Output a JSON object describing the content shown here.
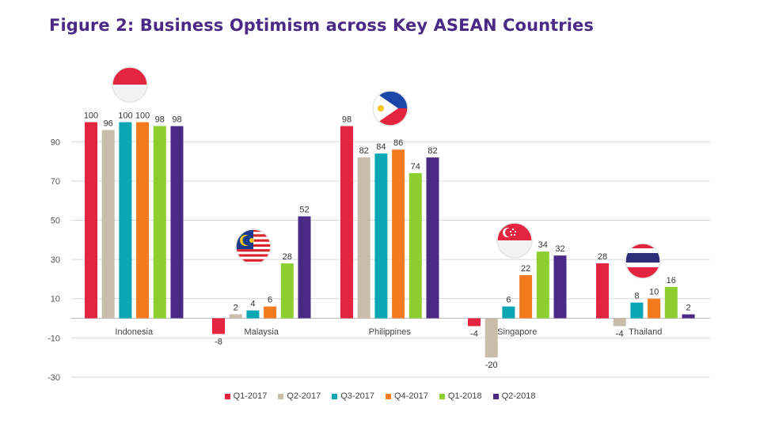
{
  "title": "Figure 2: Business Optimism across Key ASEAN Countries",
  "chart_data": {
    "type": "bar",
    "title": "Figure 2: Business Optimism across Key ASEAN Countries",
    "categories": [
      "Indonesia",
      "Malaysia",
      "Philippines",
      "Singapore",
      "Thailand"
    ],
    "series": [
      {
        "name": "Q1-2017",
        "color": "#e3253f",
        "values": [
          100,
          -8,
          98,
          -4,
          28
        ]
      },
      {
        "name": "Q2-2017",
        "color": "#c8bcab",
        "values": [
          96,
          2,
          82,
          -20,
          -4
        ]
      },
      {
        "name": "Q3-2017",
        "color": "#0aa6b4",
        "values": [
          100,
          4,
          84,
          6,
          8
        ]
      },
      {
        "name": "Q4-2017",
        "color": "#f47a20",
        "values": [
          100,
          6,
          86,
          22,
          10
        ]
      },
      {
        "name": "Q1-2018",
        "color": "#8ccf2f",
        "values": [
          98,
          28,
          74,
          34,
          16
        ]
      },
      {
        "name": "Q2-2018",
        "color": "#4b2a86",
        "values": [
          98,
          52,
          82,
          32,
          2
        ]
      }
    ],
    "yticks": [
      90,
      70,
      50,
      30,
      10,
      -10,
      -30
    ],
    "ylim": [
      -30,
      100
    ],
    "grid": true,
    "legend_position": "bottom",
    "flags": [
      "indonesia-flag-icon",
      "malaysia-flag-icon",
      "philippines-flag-icon",
      "singapore-flag-icon",
      "thailand-flag-icon"
    ]
  }
}
